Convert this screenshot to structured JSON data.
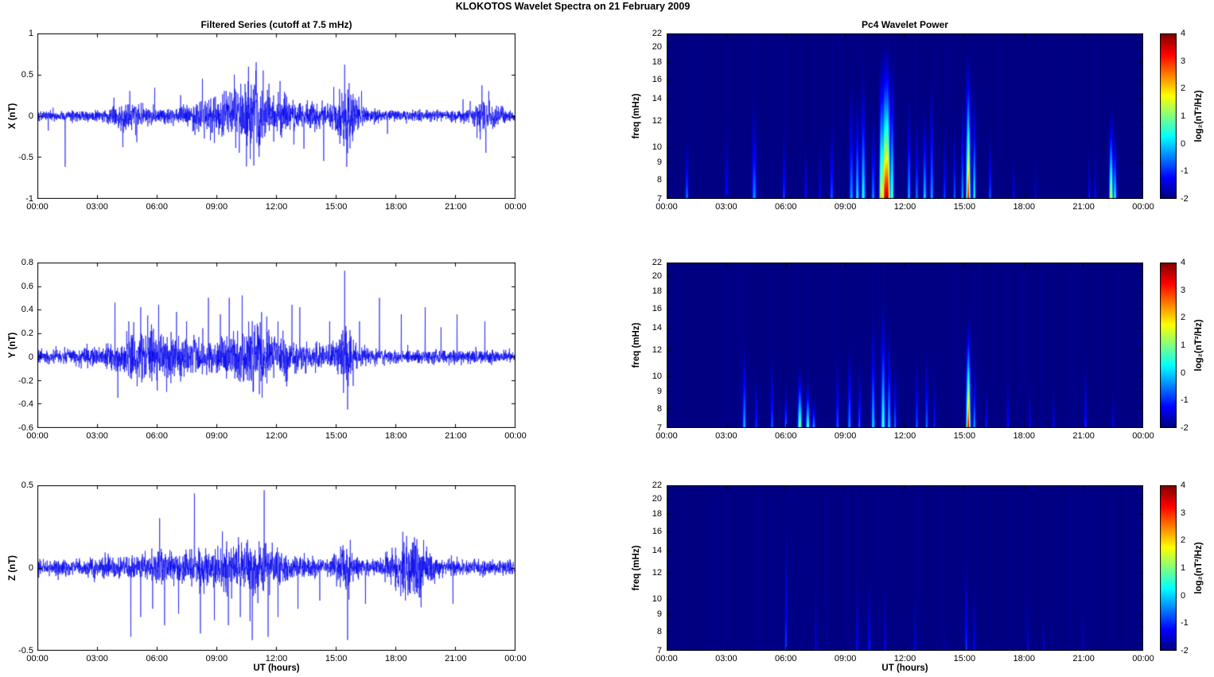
{
  "figure": {
    "title": "KLOKOTOS Wavelet Spectra on 21 February  2009",
    "xlabel": "UT (hours)",
    "colorbar_label": "log₂(nT²/Hz)",
    "line_color": "#0000EE",
    "x_tick_hours": [
      0,
      3,
      6,
      9,
      12,
      15,
      18,
      21,
      24
    ],
    "x_tick_labels": [
      "00:00",
      "03:00",
      "06:00",
      "09:00",
      "12:00",
      "15:00",
      "18:00",
      "21:00",
      "00:00"
    ]
  },
  "chart_data": [
    {
      "type": "line",
      "id": "filtered-series-x",
      "title": "Filtered Series (cutoff at 7.5 mHz)",
      "ylabel": "X (nT)",
      "xlim_hours": [
        0,
        24
      ],
      "ylim": [
        -1,
        1
      ],
      "yticks": [
        1,
        0.5,
        0,
        -0.5,
        -1
      ],
      "ytick_labels": [
        "1",
        "0.5",
        "0",
        "-0.5",
        "-1"
      ],
      "seed": 101,
      "noise_base": 0.03,
      "noise_bursts": [
        {
          "t": 4.6,
          "w": 0.7,
          "amp": 0.05
        },
        {
          "t": 8.8,
          "w": 1.2,
          "amp": 0.06
        },
        {
          "t": 11.0,
          "w": 0.9,
          "amp": 0.11
        },
        {
          "t": 12.5,
          "w": 3.0,
          "amp": 0.04
        },
        {
          "t": 15.5,
          "w": 0.4,
          "amp": 0.13
        },
        {
          "t": 22.5,
          "w": 0.5,
          "amp": 0.07
        }
      ],
      "spikes": [
        {
          "t": 0.55,
          "a": -0.18
        },
        {
          "t": 1.4,
          "a": -0.62
        },
        {
          "t": 3.85,
          "a": 0.22
        },
        {
          "t": 4.3,
          "a": -0.38
        },
        {
          "t": 4.65,
          "a": 0.3
        },
        {
          "t": 5.0,
          "a": -0.32
        },
        {
          "t": 5.9,
          "a": 0.34
        },
        {
          "t": 7.2,
          "a": 0.25
        },
        {
          "t": 8.3,
          "a": 0.45
        },
        {
          "t": 8.9,
          "a": -0.33
        },
        {
          "t": 9.4,
          "a": 0.3
        },
        {
          "t": 9.9,
          "a": 0.5
        },
        {
          "t": 10.15,
          "a": -0.45
        },
        {
          "t": 10.6,
          "a": 0.42
        },
        {
          "t": 11.0,
          "a": 0.65
        },
        {
          "t": 11.15,
          "a": -0.5
        },
        {
          "t": 11.35,
          "a": 0.55
        },
        {
          "t": 12.2,
          "a": 0.42
        },
        {
          "t": 12.9,
          "a": -0.35
        },
        {
          "t": 13.4,
          "a": -0.4
        },
        {
          "t": 14.4,
          "a": -0.55
        },
        {
          "t": 14.9,
          "a": 0.35
        },
        {
          "t": 15.45,
          "a": 0.62
        },
        {
          "t": 15.55,
          "a": -0.62
        },
        {
          "t": 16.3,
          "a": 0.3
        },
        {
          "t": 17.6,
          "a": -0.22
        },
        {
          "t": 21.4,
          "a": 0.2
        },
        {
          "t": 22.35,
          "a": 0.37
        },
        {
          "t": 22.55,
          "a": -0.45
        },
        {
          "t": 22.7,
          "a": 0.3
        }
      ]
    },
    {
      "type": "line",
      "id": "filtered-series-y",
      "ylabel": "Y (nT)",
      "xlim_hours": [
        0,
        24
      ],
      "ylim": [
        -0.6,
        0.8
      ],
      "yticks": [
        0.8,
        0.6,
        0.4,
        0.2,
        0,
        -0.2,
        -0.4,
        -0.6
      ],
      "ytick_labels": [
        "0.8",
        "0.6",
        "0.4",
        "0.2",
        "0",
        "-0.2",
        "-0.4",
        "-0.6"
      ],
      "seed": 202,
      "noise_base": 0.028,
      "noise_bursts": [
        {
          "t": 5.5,
          "w": 1.2,
          "amp": 0.05
        },
        {
          "t": 9.8,
          "w": 3.5,
          "amp": 0.045
        },
        {
          "t": 11.0,
          "w": 0.8,
          "amp": 0.06
        },
        {
          "t": 15.5,
          "w": 0.35,
          "amp": 0.1
        }
      ],
      "spikes": [
        {
          "t": 3.9,
          "a": 0.46
        },
        {
          "t": 4.05,
          "a": -0.35
        },
        {
          "t": 4.6,
          "a": 0.3
        },
        {
          "t": 5.2,
          "a": 0.42
        },
        {
          "t": 5.55,
          "a": 0.35
        },
        {
          "t": 6.1,
          "a": 0.44
        },
        {
          "t": 6.5,
          "a": -0.3
        },
        {
          "t": 7.0,
          "a": 0.38
        },
        {
          "t": 7.5,
          "a": 0.3
        },
        {
          "t": 8.6,
          "a": 0.5
        },
        {
          "t": 9.2,
          "a": 0.36
        },
        {
          "t": 9.65,
          "a": 0.5
        },
        {
          "t": 10.3,
          "a": 0.52
        },
        {
          "t": 10.85,
          "a": -0.3
        },
        {
          "t": 11.3,
          "a": -0.35
        },
        {
          "t": 12.1,
          "a": 0.3
        },
        {
          "t": 12.8,
          "a": 0.44
        },
        {
          "t": 13.2,
          "a": 0.42
        },
        {
          "t": 14.7,
          "a": 0.3
        },
        {
          "t": 15.45,
          "a": 0.73
        },
        {
          "t": 15.6,
          "a": -0.45
        },
        {
          "t": 16.2,
          "a": 0.3
        },
        {
          "t": 17.2,
          "a": 0.5
        },
        {
          "t": 18.3,
          "a": 0.36
        },
        {
          "t": 19.5,
          "a": 0.42
        },
        {
          "t": 20.3,
          "a": 0.25
        },
        {
          "t": 21.1,
          "a": 0.36
        },
        {
          "t": 22.5,
          "a": 0.3
        }
      ]
    },
    {
      "type": "line",
      "id": "filtered-series-z",
      "ylabel": "Z (nT)",
      "xlim_hours": [
        0,
        24
      ],
      "ylim": [
        -0.5,
        0.5
      ],
      "yticks": [
        0.5,
        0,
        -0.5
      ],
      "ytick_labels": [
        "0.5",
        "0",
        "-0.5"
      ],
      "seed": 303,
      "noise_base": 0.022,
      "noise_bursts": [
        {
          "t": 9.0,
          "w": 3.0,
          "amp": 0.03
        },
        {
          "t": 11.0,
          "w": 1.0,
          "amp": 0.035
        },
        {
          "t": 18.8,
          "w": 0.7,
          "amp": 0.07
        },
        {
          "t": 15.5,
          "w": 0.3,
          "amp": 0.05
        }
      ],
      "spikes": [
        {
          "t": 4.7,
          "a": -0.42
        },
        {
          "t": 5.2,
          "a": -0.3
        },
        {
          "t": 5.8,
          "a": -0.25
        },
        {
          "t": 6.15,
          "a": 0.3
        },
        {
          "t": 6.4,
          "a": -0.35
        },
        {
          "t": 7.1,
          "a": -0.28
        },
        {
          "t": 7.9,
          "a": 0.45
        },
        {
          "t": 8.2,
          "a": -0.4
        },
        {
          "t": 8.9,
          "a": -0.32
        },
        {
          "t": 9.3,
          "a": 0.22
        },
        {
          "t": 9.6,
          "a": -0.35
        },
        {
          "t": 10.2,
          "a": -0.3
        },
        {
          "t": 10.8,
          "a": -0.44
        },
        {
          "t": 11.4,
          "a": 0.47
        },
        {
          "t": 11.6,
          "a": -0.42
        },
        {
          "t": 12.1,
          "a": -0.3
        },
        {
          "t": 13.1,
          "a": -0.25
        },
        {
          "t": 14.2,
          "a": -0.2
        },
        {
          "t": 15.6,
          "a": -0.44
        },
        {
          "t": 16.5,
          "a": -0.22
        },
        {
          "t": 18.5,
          "a": -0.2
        },
        {
          "t": 19.2,
          "a": -0.18
        },
        {
          "t": 20.9,
          "a": -0.22
        }
      ]
    },
    {
      "type": "heatmap",
      "id": "wavelet-power-x",
      "title": "Pc4 Wavelet Power",
      "ylabel": "freq (mHz)",
      "xlim_hours": [
        0,
        24
      ],
      "flim_mhz": [
        7,
        22
      ],
      "freq_scale": "log",
      "yticks": [
        22,
        20,
        18,
        16,
        14,
        12,
        10,
        9,
        8,
        7
      ],
      "clim": [
        -2,
        4
      ],
      "colorbar_ticks": [
        4,
        3,
        2,
        1,
        0,
        -1,
        -2
      ],
      "seed": 11,
      "events": [
        {
          "t": 1.0,
          "w": 0.05,
          "fmax": 11,
          "p": 1.6
        },
        {
          "t": 3.0,
          "w": 0.05,
          "fmax": 13,
          "p": 1.0
        },
        {
          "t": 4.4,
          "w": 0.07,
          "fmax": 15,
          "p": 1.8
        },
        {
          "t": 5.9,
          "w": 0.05,
          "fmax": 12,
          "p": 1.2
        },
        {
          "t": 7.0,
          "w": 0.05,
          "fmax": 11,
          "p": 0.9
        },
        {
          "t": 7.7,
          "w": 0.05,
          "fmax": 12,
          "p": 0.8
        },
        {
          "t": 8.3,
          "w": 0.06,
          "fmax": 13,
          "p": 1.4
        },
        {
          "t": 9.3,
          "w": 0.07,
          "fmax": 17,
          "p": 1.8
        },
        {
          "t": 9.6,
          "w": 0.06,
          "fmax": 16,
          "p": 2.4
        },
        {
          "t": 9.9,
          "w": 0.07,
          "fmax": 18,
          "p": 2.6
        },
        {
          "t": 10.4,
          "w": 0.06,
          "fmax": 14,
          "p": 1.8
        },
        {
          "t": 10.8,
          "w": 0.06,
          "fmax": 20,
          "p": 4.0
        },
        {
          "t": 11.0,
          "w": 0.08,
          "fmax": 22,
          "p": 5.6
        },
        {
          "t": 11.15,
          "w": 0.06,
          "fmax": 22,
          "p": 4.6
        },
        {
          "t": 11.35,
          "w": 0.06,
          "fmax": 20,
          "p": 3.0
        },
        {
          "t": 12.2,
          "w": 0.06,
          "fmax": 16,
          "p": 2.0
        },
        {
          "t": 12.6,
          "w": 0.05,
          "fmax": 13,
          "p": 1.6
        },
        {
          "t": 13.0,
          "w": 0.06,
          "fmax": 14,
          "p": 2.2
        },
        {
          "t": 13.35,
          "w": 0.06,
          "fmax": 18,
          "p": 1.9
        },
        {
          "t": 14.0,
          "w": 0.05,
          "fmax": 12,
          "p": 1.2
        },
        {
          "t": 14.5,
          "w": 0.05,
          "fmax": 13,
          "p": 1.4
        },
        {
          "t": 14.9,
          "w": 0.05,
          "fmax": 16,
          "p": 2.0
        },
        {
          "t": 15.2,
          "w": 0.07,
          "fmax": 21,
          "p": 5.4
        },
        {
          "t": 15.5,
          "w": 0.05,
          "fmax": 16,
          "p": 2.6
        },
        {
          "t": 16.3,
          "w": 0.05,
          "fmax": 12,
          "p": 1.4
        },
        {
          "t": 17.5,
          "w": 0.04,
          "fmax": 10,
          "p": 0.8
        },
        {
          "t": 18.6,
          "w": 0.04,
          "fmax": 10,
          "p": 0.6
        },
        {
          "t": 21.3,
          "w": 0.04,
          "fmax": 11,
          "p": 1.0
        },
        {
          "t": 21.6,
          "w": 0.04,
          "fmax": 10,
          "p": 0.8
        },
        {
          "t": 22.4,
          "w": 0.06,
          "fmax": 14,
          "p": 4.0
        },
        {
          "t": 22.6,
          "w": 0.05,
          "fmax": 12,
          "p": 2.6
        }
      ]
    },
    {
      "type": "heatmap",
      "id": "wavelet-power-y",
      "ylabel": "freq (mHz)",
      "xlim_hours": [
        0,
        24
      ],
      "flim_mhz": [
        7,
        22
      ],
      "freq_scale": "log",
      "yticks": [
        22,
        20,
        18,
        16,
        14,
        12,
        10,
        9,
        8,
        7
      ],
      "clim": [
        -2,
        4
      ],
      "colorbar_ticks": [
        4,
        3,
        2,
        1,
        0,
        -1,
        -2
      ],
      "seed": 12,
      "events": [
        {
          "t": 3.9,
          "w": 0.06,
          "fmax": 14,
          "p": 2.0
        },
        {
          "t": 4.5,
          "w": 0.05,
          "fmax": 11,
          "p": 1.2
        },
        {
          "t": 5.3,
          "w": 0.05,
          "fmax": 12,
          "p": 1.4
        },
        {
          "t": 6.0,
          "w": 0.05,
          "fmax": 10,
          "p": 1.6
        },
        {
          "t": 6.7,
          "w": 0.07,
          "fmax": 11,
          "p": 3.4
        },
        {
          "t": 7.1,
          "w": 0.06,
          "fmax": 10,
          "p": 3.0
        },
        {
          "t": 7.4,
          "w": 0.05,
          "fmax": 9,
          "p": 2.0
        },
        {
          "t": 8.6,
          "w": 0.05,
          "fmax": 12,
          "p": 1.4
        },
        {
          "t": 9.2,
          "w": 0.06,
          "fmax": 14,
          "p": 1.8
        },
        {
          "t": 9.7,
          "w": 0.05,
          "fmax": 12,
          "p": 1.4
        },
        {
          "t": 10.4,
          "w": 0.06,
          "fmax": 16,
          "p": 2.2
        },
        {
          "t": 10.9,
          "w": 0.07,
          "fmax": 18,
          "p": 2.8
        },
        {
          "t": 11.2,
          "w": 0.06,
          "fmax": 15,
          "p": 2.2
        },
        {
          "t": 11.5,
          "w": 0.05,
          "fmax": 12,
          "p": 1.6
        },
        {
          "t": 12.6,
          "w": 0.05,
          "fmax": 12,
          "p": 1.4
        },
        {
          "t": 13.1,
          "w": 0.05,
          "fmax": 13,
          "p": 1.6
        },
        {
          "t": 13.5,
          "w": 0.04,
          "fmax": 11,
          "p": 1.0
        },
        {
          "t": 15.2,
          "w": 0.07,
          "fmax": 16,
          "p": 5.5
        },
        {
          "t": 15.5,
          "w": 0.05,
          "fmax": 12,
          "p": 1.8
        },
        {
          "t": 16.1,
          "w": 0.04,
          "fmax": 10,
          "p": 1.0
        },
        {
          "t": 17.2,
          "w": 0.04,
          "fmax": 11,
          "p": 1.0
        },
        {
          "t": 18.3,
          "w": 0.04,
          "fmax": 10,
          "p": 0.8
        },
        {
          "t": 19.5,
          "w": 0.04,
          "fmax": 10,
          "p": 0.8
        },
        {
          "t": 21.1,
          "w": 0.05,
          "fmax": 12,
          "p": 1.0
        },
        {
          "t": 22.5,
          "w": 0.04,
          "fmax": 10,
          "p": 0.8
        }
      ]
    },
    {
      "type": "heatmap",
      "id": "wavelet-power-z",
      "ylabel": "freq (mHz)",
      "xlim_hours": [
        0,
        24
      ],
      "flim_mhz": [
        7,
        22
      ],
      "freq_scale": "log",
      "yticks": [
        22,
        20,
        18,
        16,
        14,
        12,
        10,
        9,
        8,
        7
      ],
      "clim": [
        -2,
        4
      ],
      "colorbar_ticks": [
        4,
        3,
        2,
        1,
        0,
        -1,
        -2
      ],
      "seed": 13,
      "events": [
        {
          "t": 6.0,
          "w": 0.04,
          "fmax": 20,
          "p": 1.2
        },
        {
          "t": 7.5,
          "w": 0.04,
          "fmax": 12,
          "p": 0.6
        },
        {
          "t": 9.6,
          "w": 0.05,
          "fmax": 12,
          "p": 0.8
        },
        {
          "t": 10.2,
          "w": 0.05,
          "fmax": 13,
          "p": 0.9
        },
        {
          "t": 11.0,
          "w": 0.04,
          "fmax": 12,
          "p": 0.8
        },
        {
          "t": 12.5,
          "w": 0.04,
          "fmax": 11,
          "p": 0.6
        },
        {
          "t": 14.0,
          "w": 0.04,
          "fmax": 10,
          "p": 0.4
        },
        {
          "t": 15.1,
          "w": 0.05,
          "fmax": 14,
          "p": 1.1
        },
        {
          "t": 15.5,
          "w": 0.04,
          "fmax": 12,
          "p": 0.8
        },
        {
          "t": 18.2,
          "w": 0.04,
          "fmax": 11,
          "p": 0.6
        },
        {
          "t": 19.0,
          "w": 0.04,
          "fmax": 10,
          "p": 0.6
        },
        {
          "t": 21.0,
          "w": 0.04,
          "fmax": 10,
          "p": 0.5
        }
      ]
    }
  ]
}
